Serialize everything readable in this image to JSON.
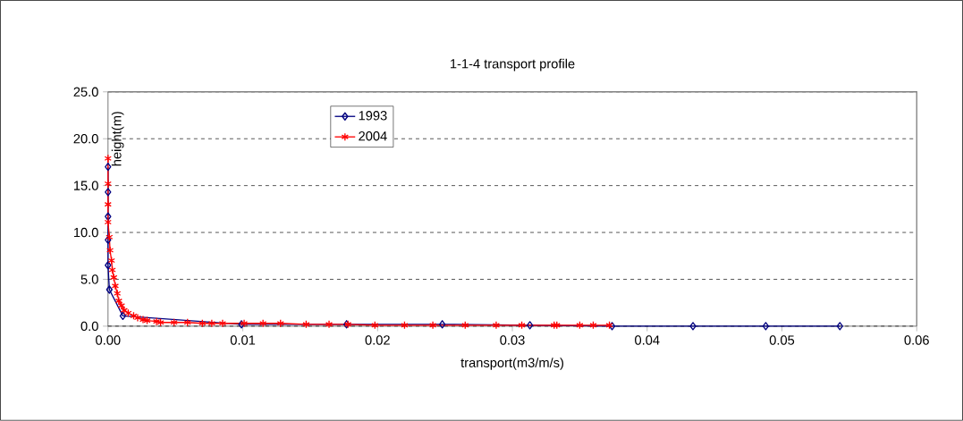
{
  "chart_data": {
    "type": "line",
    "title": "1-1-4  transport profile",
    "xlabel": "transport(m3/m/s)",
    "ylabel": "height(m)",
    "xlim": [
      0,
      0.06
    ],
    "xticks": [
      {
        "value": 0,
        "label": "0.00"
      },
      0.01,
      0.02,
      0.03,
      0.04,
      0.05,
      0.06
    ],
    "ylim": [
      0,
      25
    ],
    "yticks": [
      {
        "value": 0,
        "label": "0.0"
      },
      {
        "value": 5,
        "label": "5.0"
      },
      {
        "value": 10,
        "label": "10.0"
      },
      {
        "value": 15,
        "label": "15.0"
      },
      {
        "value": 20,
        "label": "20.0"
      },
      {
        "value": 25,
        "label": "25.0"
      }
    ],
    "grid": "y",
    "legend": "top left",
    "series": [
      {
        "name": "1993",
        "color": "#000080",
        "marker": "diamond",
        "x": [
          0,
          0,
          0,
          0,
          0,
          0.0001,
          0.0011,
          0.0099,
          0.0177,
          0.0248,
          0.0313,
          0.0374,
          0.0434,
          0.0488,
          0.0543
        ],
        "values": [
          17.0,
          14.3,
          11.7,
          9.2,
          6.5,
          3.9,
          1.1,
          0.2,
          0.2,
          0.2,
          0.1,
          0.0,
          0.0,
          0.0,
          0.0
        ]
      },
      {
        "name": "2004",
        "color": "#ff0000",
        "marker": "cross",
        "x": [
          0,
          0,
          0,
          0,
          0.0001,
          0.00015,
          0.00026,
          0.00032,
          0.00043,
          0.00054,
          0.00069,
          0.0008,
          0.001,
          0.0012,
          0.0015,
          0.0019,
          0.0022,
          0.0026,
          0.0029,
          0.0036,
          0.0039,
          0.0049,
          0.0059,
          0.007,
          0.0077,
          0.0085,
          0.0101,
          0.0115,
          0.0128,
          0.0147,
          0.0164,
          0.0178,
          0.0198,
          0.022,
          0.0241,
          0.0265,
          0.0288,
          0.0307,
          0.0331,
          0.0333,
          0.035,
          0.036,
          0.0372
        ],
        "values": [
          17.9,
          15.2,
          13.0,
          11.1,
          9.5,
          8.1,
          7.0,
          6.0,
          5.2,
          4.3,
          3.5,
          2.7,
          2.2,
          1.7,
          1.4,
          1.1,
          0.9,
          0.7,
          0.6,
          0.5,
          0.4,
          0.4,
          0.4,
          0.3,
          0.3,
          0.3,
          0.3,
          0.3,
          0.3,
          0.2,
          0.2,
          0.2,
          0.1,
          0.1,
          0.1,
          0.1,
          0.1,
          0.1,
          0.1,
          0.1,
          0.1,
          0.1,
          0.1
        ]
      }
    ]
  }
}
